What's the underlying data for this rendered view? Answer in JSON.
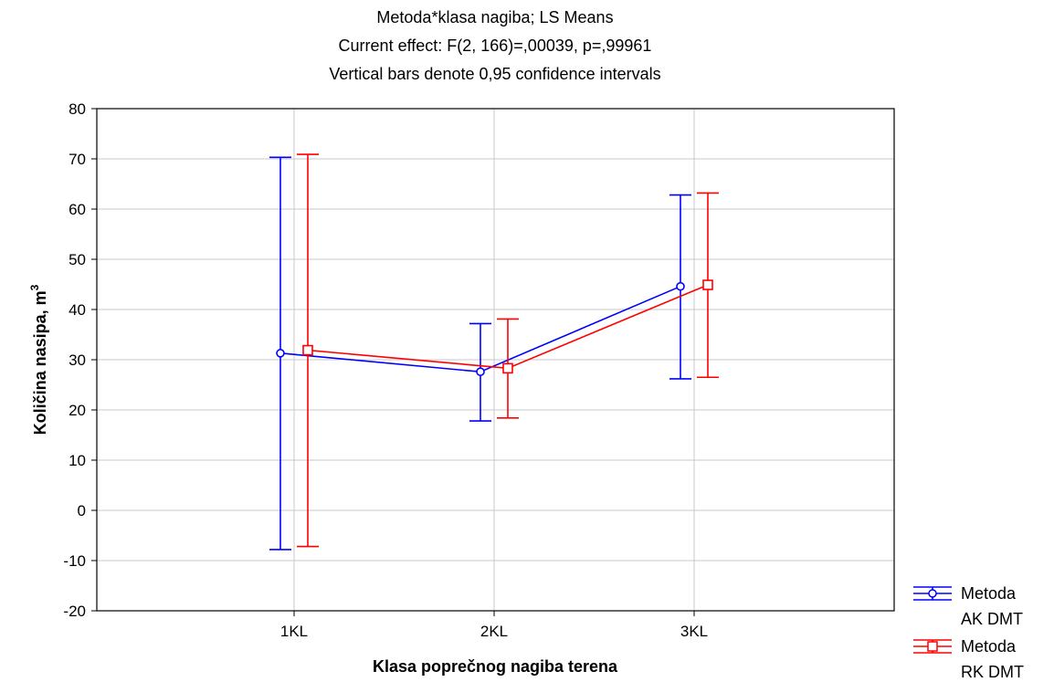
{
  "chart_data": {
    "type": "line",
    "title": "Metoda*klasa nagiba; LS Means",
    "subtitle": [
      "Current effect: F(2, 166)=,00039, p=,99961",
      "Vertical bars denote 0,95 confidence intervals"
    ],
    "xlabel": "Klasa poprečnog nagiba terena",
    "ylabel": "Količina nasipa, m",
    "ylabel_superscript": "3",
    "categories": [
      "1KL",
      "2KL",
      "3KL"
    ],
    "ylim": [
      -20,
      80
    ],
    "yticks": [
      -20,
      -10,
      0,
      10,
      20,
      30,
      40,
      50,
      60,
      70,
      80
    ],
    "grid": true,
    "legend_position": "bottom-right, outside plot",
    "series": [
      {
        "name": "Metoda AK DMT",
        "legend_lines": [
          "Metoda",
          "AK DMT"
        ],
        "color": "#0000ff",
        "marker": "circle",
        "values": [
          31.3,
          27.6,
          44.6
        ],
        "ci_lower": [
          -7.8,
          17.8,
          26.2
        ],
        "ci_upper": [
          70.3,
          37.2,
          62.8
        ]
      },
      {
        "name": "Metoda RK DMT",
        "legend_lines": [
          "Metoda",
          "RK DMT"
        ],
        "color": "#ff0000",
        "marker": "square",
        "values": [
          31.9,
          28.3,
          44.9
        ],
        "ci_lower": [
          -7.2,
          18.4,
          26.5
        ],
        "ci_upper": [
          70.9,
          38.1,
          63.2
        ]
      }
    ]
  }
}
